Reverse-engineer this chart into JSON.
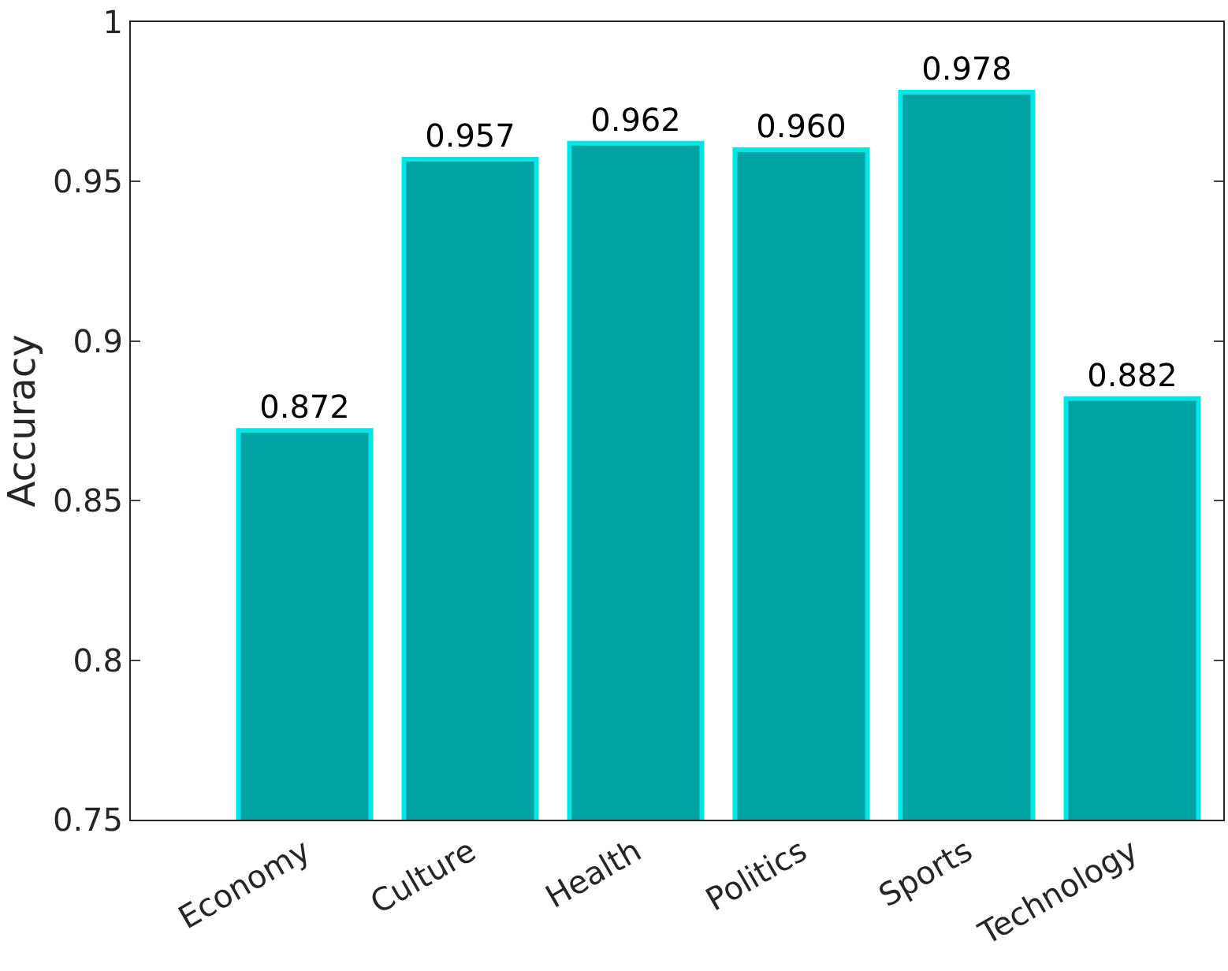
{
  "chart_data": {
    "type": "bar",
    "ylabel": "Accuracy",
    "categories": [
      "Economy",
      "Culture",
      "Health",
      "Politics",
      "Sports",
      "Technology"
    ],
    "values": [
      0.872,
      0.957,
      0.962,
      0.96,
      0.978,
      0.882
    ],
    "value_labels": [
      "0.872",
      "0.957",
      "0.962",
      "0.960",
      "0.978",
      "0.882"
    ],
    "color": "#00a3a3",
    "ylim": [
      0.75,
      1
    ],
    "yticks": [
      0.75,
      0.8,
      0.85,
      0.9,
      0.95,
      1
    ]
  }
}
